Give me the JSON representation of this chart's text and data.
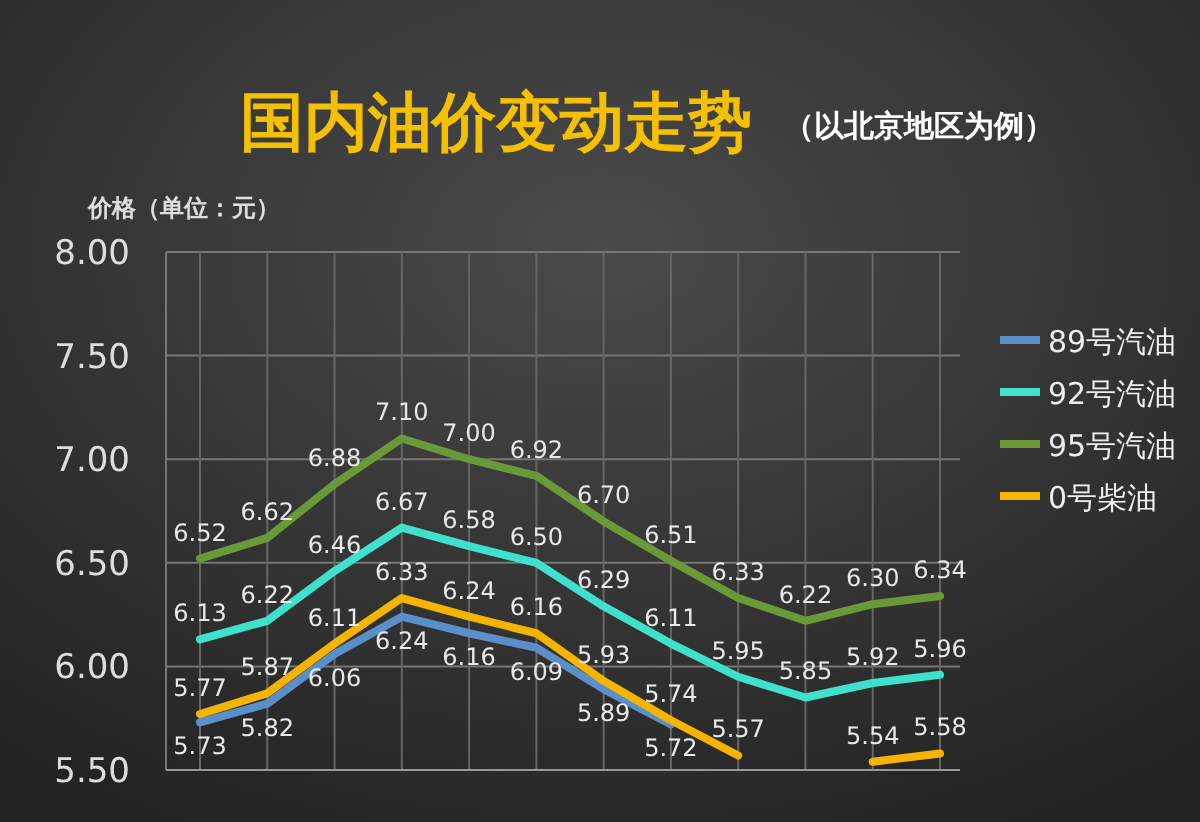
{
  "chart_data": {
    "type": "line",
    "title": "国内油价变动走势",
    "subtitle": "（以北京地区为例）",
    "ylabel": "价格（单位：元）",
    "categories": [
      null,
      null,
      null,
      null,
      null,
      null,
      null,
      null,
      null,
      null,
      null,
      null
    ],
    "series": [
      {
        "name": "89号汽油",
        "color": "#5b8fc9",
        "values": [
          5.73,
          5.82,
          6.06,
          6.24,
          6.16,
          6.09,
          5.89,
          5.72,
          null,
          null,
          null,
          null
        ],
        "value_labels": [
          "5.73",
          "5.82",
          "6.06",
          "6.24",
          "6.16",
          "6.09",
          "5.89",
          "5.72",
          null,
          null,
          null,
          null
        ]
      },
      {
        "name": "92号汽油",
        "color": "#3fe0cc",
        "values": [
          6.13,
          6.22,
          6.46,
          6.67,
          6.58,
          6.5,
          6.29,
          6.11,
          5.95,
          5.85,
          5.92,
          5.96
        ],
        "value_labels": [
          "6.13",
          "6.22",
          "6.46",
          "6.67",
          "6.58",
          "6.50",
          "6.29",
          "6.11",
          "5.95",
          "5.85",
          "5.92",
          "5.96"
        ]
      },
      {
        "name": "95号汽油",
        "color": "#6a9a38",
        "values": [
          6.52,
          6.62,
          6.88,
          7.1,
          7.0,
          6.92,
          6.7,
          6.51,
          6.33,
          6.22,
          6.3,
          6.34
        ],
        "value_labels": [
          "6.52",
          "6.62",
          "6.88",
          "7.10",
          "7.00",
          "6.92",
          "6.70",
          "6.51",
          "6.33",
          "6.22",
          "6.30",
          "6.34"
        ]
      },
      {
        "name": "0号柴油",
        "color": "#f5b400",
        "values": [
          5.77,
          5.87,
          6.11,
          6.33,
          6.24,
          6.16,
          5.93,
          5.74,
          5.57,
          null,
          5.54,
          5.58
        ],
        "value_labels": [
          "5.77",
          "5.87",
          "6.11",
          "6.33",
          "6.24",
          "6.16",
          "5.93",
          "5.74",
          "5.57",
          null,
          "5.54",
          "5.58"
        ]
      }
    ],
    "ylim": [
      5.5,
      8.0
    ],
    "yticks": [
      {
        "value": 5.5,
        "label": "5.50"
      },
      {
        "value": 6.0,
        "label": "6.00"
      },
      {
        "value": 6.5,
        "label": "6.50"
      },
      {
        "value": 7.0,
        "label": "7.00"
      },
      {
        "value": 7.5,
        "label": "7.50"
      },
      {
        "value": 8.0,
        "label": "8.00"
      }
    ],
    "grid": true,
    "legend": "right",
    "line_style": "solid",
    "marker": "none",
    "tick_labels": "y"
  }
}
